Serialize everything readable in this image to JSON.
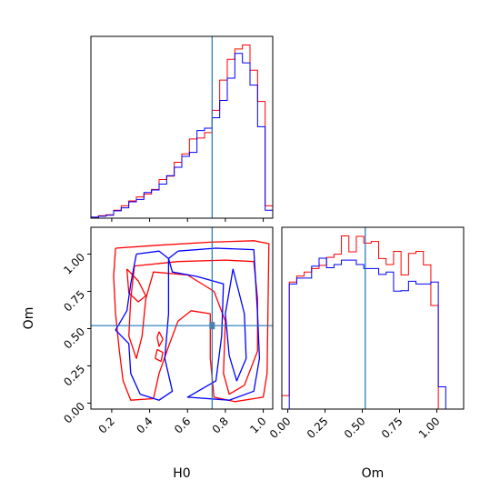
{
  "chart_data": {
    "type": "corner",
    "colors": {
      "red": "#ff0000",
      "blue": "#0000ff",
      "truth": "#1f77b4",
      "truth_marker": "#4a7fb0"
    },
    "truth": {
      "H0": 0.73,
      "Om": 0.52
    },
    "axes": {
      "H0": {
        "label": "H0",
        "range": [
          0.09,
          1.05
        ],
        "ticks": [
          0.2,
          0.4,
          0.6,
          0.8,
          1.0
        ],
        "tick_labels": [
          "0.2",
          "0.4",
          "0.6",
          "0.8",
          "1.0"
        ]
      },
      "Om": {
        "label": "Om",
        "range": [
          -0.04,
          1.18
        ],
        "ticks": [
          0.0,
          0.25,
          0.5,
          0.75,
          1.0
        ],
        "tick_labels": [
          "0.00",
          "0.25",
          "0.50",
          "0.75",
          "1.00"
        ]
      }
    },
    "hist_H0": {
      "bin_edges": [
        0.09,
        0.13,
        0.17,
        0.21,
        0.25,
        0.29,
        0.33,
        0.37,
        0.41,
        0.45,
        0.49,
        0.53,
        0.57,
        0.61,
        0.65,
        0.69,
        0.73,
        0.77,
        0.81,
        0.85,
        0.89,
        0.93,
        0.97,
        1.01,
        1.05
      ],
      "series": [
        {
          "color": "red",
          "counts": [
            0.2,
            0.5,
            0.7,
            1.6,
            2.5,
            3.5,
            4.3,
            4.9,
            5.8,
            7.8,
            8.5,
            11.3,
            13.0,
            16.0,
            16.2,
            17.3,
            21.8,
            27.9,
            32.1,
            34.2,
            35.0,
            29.9,
            23.6,
            2.5
          ]
        },
        {
          "color": "blue",
          "counts": [
            0.2,
            0.4,
            0.6,
            1.5,
            2.1,
            3.3,
            3.8,
            5.2,
            5.7,
            6.9,
            8.6,
            10.3,
            12.5,
            13.3,
            17.7,
            18.2,
            20.3,
            23.8,
            28.3,
            33.3,
            31.4,
            26.9,
            18.5,
            1.6
          ]
        }
      ]
    },
    "hist_Om": {
      "bin_edges": [
        -0.04,
        0.01,
        0.06,
        0.11,
        0.16,
        0.21,
        0.26,
        0.31,
        0.36,
        0.41,
        0.46,
        0.51,
        0.56,
        0.61,
        0.66,
        0.71,
        0.76,
        0.81,
        0.86,
        0.91,
        0.96,
        1.01,
        1.06,
        1.11,
        1.16
      ],
      "series": [
        {
          "color": "red",
          "counts": [
            3.4,
            32.0,
            33.5,
            34.5,
            35.4,
            36.2,
            38.2,
            39.0,
            43.6,
            39.6,
            43.5,
            41.8,
            42.2,
            37.9,
            36.4,
            39.7,
            33.8,
            39.2,
            39.7,
            36.3,
            26.1,
            0.0,
            0.0,
            0.0
          ]
        },
        {
          "color": "blue",
          "counts": [
            0.0,
            31.5,
            33.0,
            33.0,
            36.0,
            38.0,
            35.6,
            36.4,
            37.5,
            37.5,
            36.4,
            35.4,
            35.4,
            33.9,
            34.5,
            29.7,
            29.8,
            32.2,
            31.5,
            31.5,
            32.0,
            5.6,
            0.0,
            0.0
          ]
        }
      ]
    },
    "contours": [
      {
        "color": "red",
        "points": [
          [
            0.22,
            1.04
          ],
          [
            0.45,
            1.06
          ],
          [
            0.72,
            1.08
          ],
          [
            0.95,
            1.09
          ],
          [
            1.03,
            1.07
          ],
          [
            1.02,
            0.2
          ],
          [
            1.0,
            0.04
          ],
          [
            0.85,
            0.01
          ],
          [
            0.74,
            0.04
          ],
          [
            0.72,
            0.3
          ],
          [
            0.72,
            0.6
          ],
          [
            0.62,
            0.62
          ],
          [
            0.55,
            0.55
          ],
          [
            0.5,
            0.38
          ],
          [
            0.45,
            0.2
          ],
          [
            0.42,
            0.03
          ],
          [
            0.3,
            0.02
          ],
          [
            0.26,
            0.15
          ],
          [
            0.24,
            0.35
          ],
          [
            0.22,
            0.6
          ],
          [
            0.21,
            0.85
          ],
          [
            0.22,
            1.04
          ]
        ]
      },
      {
        "color": "red",
        "points": [
          [
            0.32,
            0.92
          ],
          [
            0.55,
            0.95
          ],
          [
            0.8,
            0.96
          ],
          [
            0.95,
            0.95
          ],
          [
            0.97,
            0.7
          ],
          [
            0.97,
            0.35
          ],
          [
            0.9,
            0.12
          ],
          [
            0.82,
            0.06
          ],
          [
            0.79,
            0.2
          ],
          [
            0.8,
            0.55
          ],
          [
            0.74,
            0.75
          ],
          [
            0.6,
            0.86
          ],
          [
            0.42,
            0.88
          ],
          [
            0.38,
            0.7
          ],
          [
            0.36,
            0.45
          ],
          [
            0.33,
            0.3
          ],
          [
            0.29,
            0.45
          ],
          [
            0.3,
            0.7
          ],
          [
            0.32,
            0.92
          ]
        ]
      },
      {
        "color": "red",
        "points": [
          [
            0.28,
            0.9
          ],
          [
            0.34,
            0.82
          ],
          [
            0.38,
            0.72
          ],
          [
            0.34,
            0.68
          ],
          [
            0.29,
            0.74
          ],
          [
            0.28,
            0.9
          ]
        ]
      },
      {
        "color": "red",
        "points": [
          [
            0.44,
            0.36
          ],
          [
            0.47,
            0.34
          ],
          [
            0.46,
            0.28
          ],
          [
            0.43,
            0.3
          ],
          [
            0.44,
            0.36
          ]
        ]
      },
      {
        "color": "red",
        "points": [
          [
            0.45,
            0.48
          ],
          [
            0.47,
            0.43
          ],
          [
            0.45,
            0.38
          ],
          [
            0.44,
            0.44
          ],
          [
            0.45,
            0.48
          ]
        ]
      },
      {
        "color": "blue",
        "points": [
          [
            0.33,
            1.0
          ],
          [
            0.45,
            1.02
          ],
          [
            0.5,
            0.97
          ],
          [
            0.5,
            0.6
          ],
          [
            0.48,
            0.3
          ],
          [
            0.52,
            0.08
          ],
          [
            0.45,
            0.02
          ],
          [
            0.35,
            0.06
          ],
          [
            0.3,
            0.2
          ],
          [
            0.29,
            0.4
          ],
          [
            0.22,
            0.49
          ],
          [
            0.28,
            0.62
          ],
          [
            0.3,
            0.8
          ],
          [
            0.33,
            1.0
          ]
        ]
      },
      {
        "color": "blue",
        "points": [
          [
            0.55,
            1.02
          ],
          [
            0.75,
            1.04
          ],
          [
            0.95,
            1.03
          ],
          [
            0.97,
            0.6
          ],
          [
            0.98,
            0.3
          ],
          [
            0.95,
            0.08
          ],
          [
            0.82,
            0.02
          ],
          [
            0.6,
            0.04
          ],
          [
            0.75,
            0.15
          ],
          [
            0.78,
            0.45
          ],
          [
            0.79,
            0.8
          ],
          [
            0.65,
            0.85
          ],
          [
            0.52,
            0.88
          ],
          [
            0.5,
            0.97
          ],
          [
            0.55,
            1.02
          ]
        ]
      },
      {
        "color": "blue",
        "points": [
          [
            0.84,
            0.9
          ],
          [
            0.9,
            0.6
          ],
          [
            0.91,
            0.3
          ],
          [
            0.86,
            0.15
          ],
          [
            0.82,
            0.32
          ],
          [
            0.8,
            0.6
          ],
          [
            0.84,
            0.9
          ]
        ]
      }
    ]
  }
}
